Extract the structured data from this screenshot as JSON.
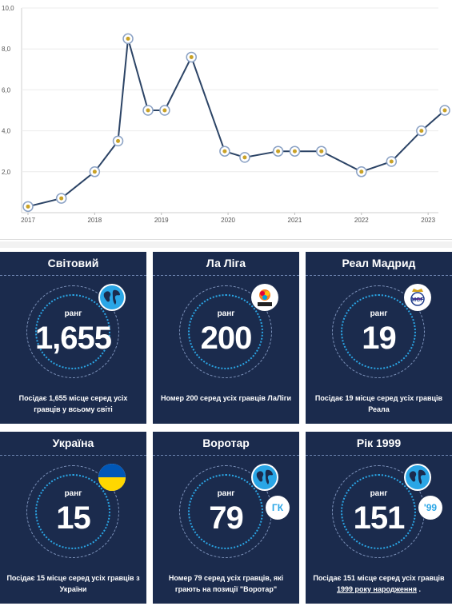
{
  "chart_data": {
    "type": "line",
    "x": [
      2017.0,
      2017.5,
      2018.0,
      2018.35,
      2018.5,
      2018.8,
      2019.05,
      2019.45,
      2019.95,
      2020.25,
      2020.75,
      2021.0,
      2021.4,
      2022.0,
      2022.45,
      2022.9,
      2023.25
    ],
    "y": [
      0.3,
      0.7,
      2.0,
      3.5,
      8.5,
      5.0,
      5.0,
      7.6,
      3.0,
      2.7,
      3.0,
      3.0,
      3.0,
      2.0,
      2.5,
      4.0,
      5.0
    ],
    "xticks": [
      "2017",
      "2018",
      "2019",
      "2020",
      "2021",
      "2022",
      "2023"
    ],
    "yticks": [
      "2,0",
      "4,0",
      "6,0",
      "8,0",
      "10,0"
    ],
    "xlim": [
      2017,
      2023.25
    ],
    "ylim": [
      0,
      10
    ],
    "grid": true,
    "line_color": "#2c4466",
    "title": "",
    "xlabel": "",
    "ylabel": ""
  },
  "cards": [
    {
      "title": "Світовий",
      "rank_label": "ранг",
      "value": "1,655",
      "desc": "Посідає 1,655 місце серед усіх гравців у всьому світі",
      "desc_hl": "",
      "desc_tail": "",
      "badge": "globe-icon"
    },
    {
      "title": "Ла Ліга",
      "rank_label": "ранг",
      "value": "200",
      "desc": "Номер 200 серед усіх гравців ЛаЛіги",
      "desc_hl": "",
      "desc_tail": "",
      "badge": "laliga-logo-icon"
    },
    {
      "title": "Реал Мадрид",
      "rank_label": "ранг",
      "value": "19",
      "desc": "Посідає 19 місце серед усіх гравців Реала",
      "desc_hl": "",
      "desc_tail": "",
      "badge": "real-madrid-crest-icon"
    },
    {
      "title": "Україна",
      "rank_label": "ранг",
      "value": "15",
      "desc": "Посідає 15 місце серед усіх гравців з України",
      "desc_hl": "",
      "desc_tail": "",
      "badge": "ukraine-flag-icon"
    },
    {
      "title": "Воротар",
      "rank_label": "ранг",
      "value": "79",
      "desc": "Номер 79 серед усіх гравців, які грають на позиції \"Воротар\"",
      "desc_hl": "",
      "desc_tail": "",
      "badge": "globe-icon",
      "pill": "ГК"
    },
    {
      "title": "Рік 1999",
      "rank_label": "ранг",
      "value": "151",
      "desc": "Посідає 151 місце серед усіх гравців ",
      "desc_hl": "1999 року народження",
      "desc_tail": " .",
      "badge": "globe-icon",
      "pill": "'99"
    }
  ],
  "colors": {
    "card_bg": "#1b2b4d",
    "accent": "#2aa6e6",
    "ukraine_blue": "#0057b7",
    "ukraine_yellow": "#ffd700"
  }
}
